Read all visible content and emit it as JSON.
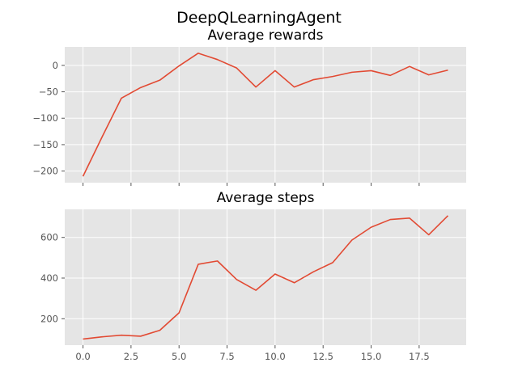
{
  "suptitle": "DeepQLearningAgent",
  "chart_data": [
    {
      "type": "line",
      "title": "Average rewards",
      "xlabel": "",
      "ylabel": "",
      "grid": true,
      "background": "#e5e5e5",
      "line_color": "#e24a33",
      "x": [
        0,
        1,
        2,
        3,
        4,
        5,
        6,
        7,
        8,
        9,
        10,
        11,
        12,
        13,
        14,
        15,
        16,
        17,
        18,
        19
      ],
      "values": [
        -210,
        -135,
        -62,
        -42,
        -28,
        -1,
        23,
        11,
        -5,
        -41,
        -10,
        -41,
        -27,
        -21,
        -13,
        -10,
        -19,
        -2,
        -18,
        -9
      ],
      "xlim": [
        -0.95,
        19.95
      ],
      "ylim": [
        -222,
        35
      ],
      "xticks": [
        0,
        2.5,
        5,
        7.5,
        10,
        12.5,
        15,
        17.5
      ],
      "xtick_labels_visible": false,
      "yticks": [
        0,
        -50,
        -100,
        -150,
        -200
      ],
      "ytick_labels": [
        "0",
        "−50",
        "−100",
        "−150",
        "−200"
      ]
    },
    {
      "type": "line",
      "title": "Average steps",
      "xlabel": "",
      "ylabel": "",
      "grid": true,
      "background": "#e5e5e5",
      "line_color": "#e24a33",
      "x": [
        0,
        1,
        2,
        3,
        4,
        5,
        6,
        7,
        8,
        9,
        10,
        11,
        12,
        13,
        14,
        15,
        16,
        17,
        18,
        19
      ],
      "values": [
        100,
        111,
        119,
        114,
        143,
        229,
        468,
        484,
        393,
        340,
        420,
        377,
        431,
        476,
        587,
        650,
        688,
        695,
        613,
        707
      ],
      "xlim": [
        -0.95,
        19.95
      ],
      "ylim": [
        70,
        738
      ],
      "xticks": [
        0,
        2.5,
        5,
        7.5,
        10,
        12.5,
        15,
        17.5
      ],
      "xtick_labels": [
        "0.0",
        "2.5",
        "5.0",
        "7.5",
        "10.0",
        "12.5",
        "15.0",
        "17.5"
      ],
      "yticks": [
        200,
        400,
        600
      ],
      "ytick_labels": [
        "200",
        "400",
        "600"
      ]
    }
  ]
}
